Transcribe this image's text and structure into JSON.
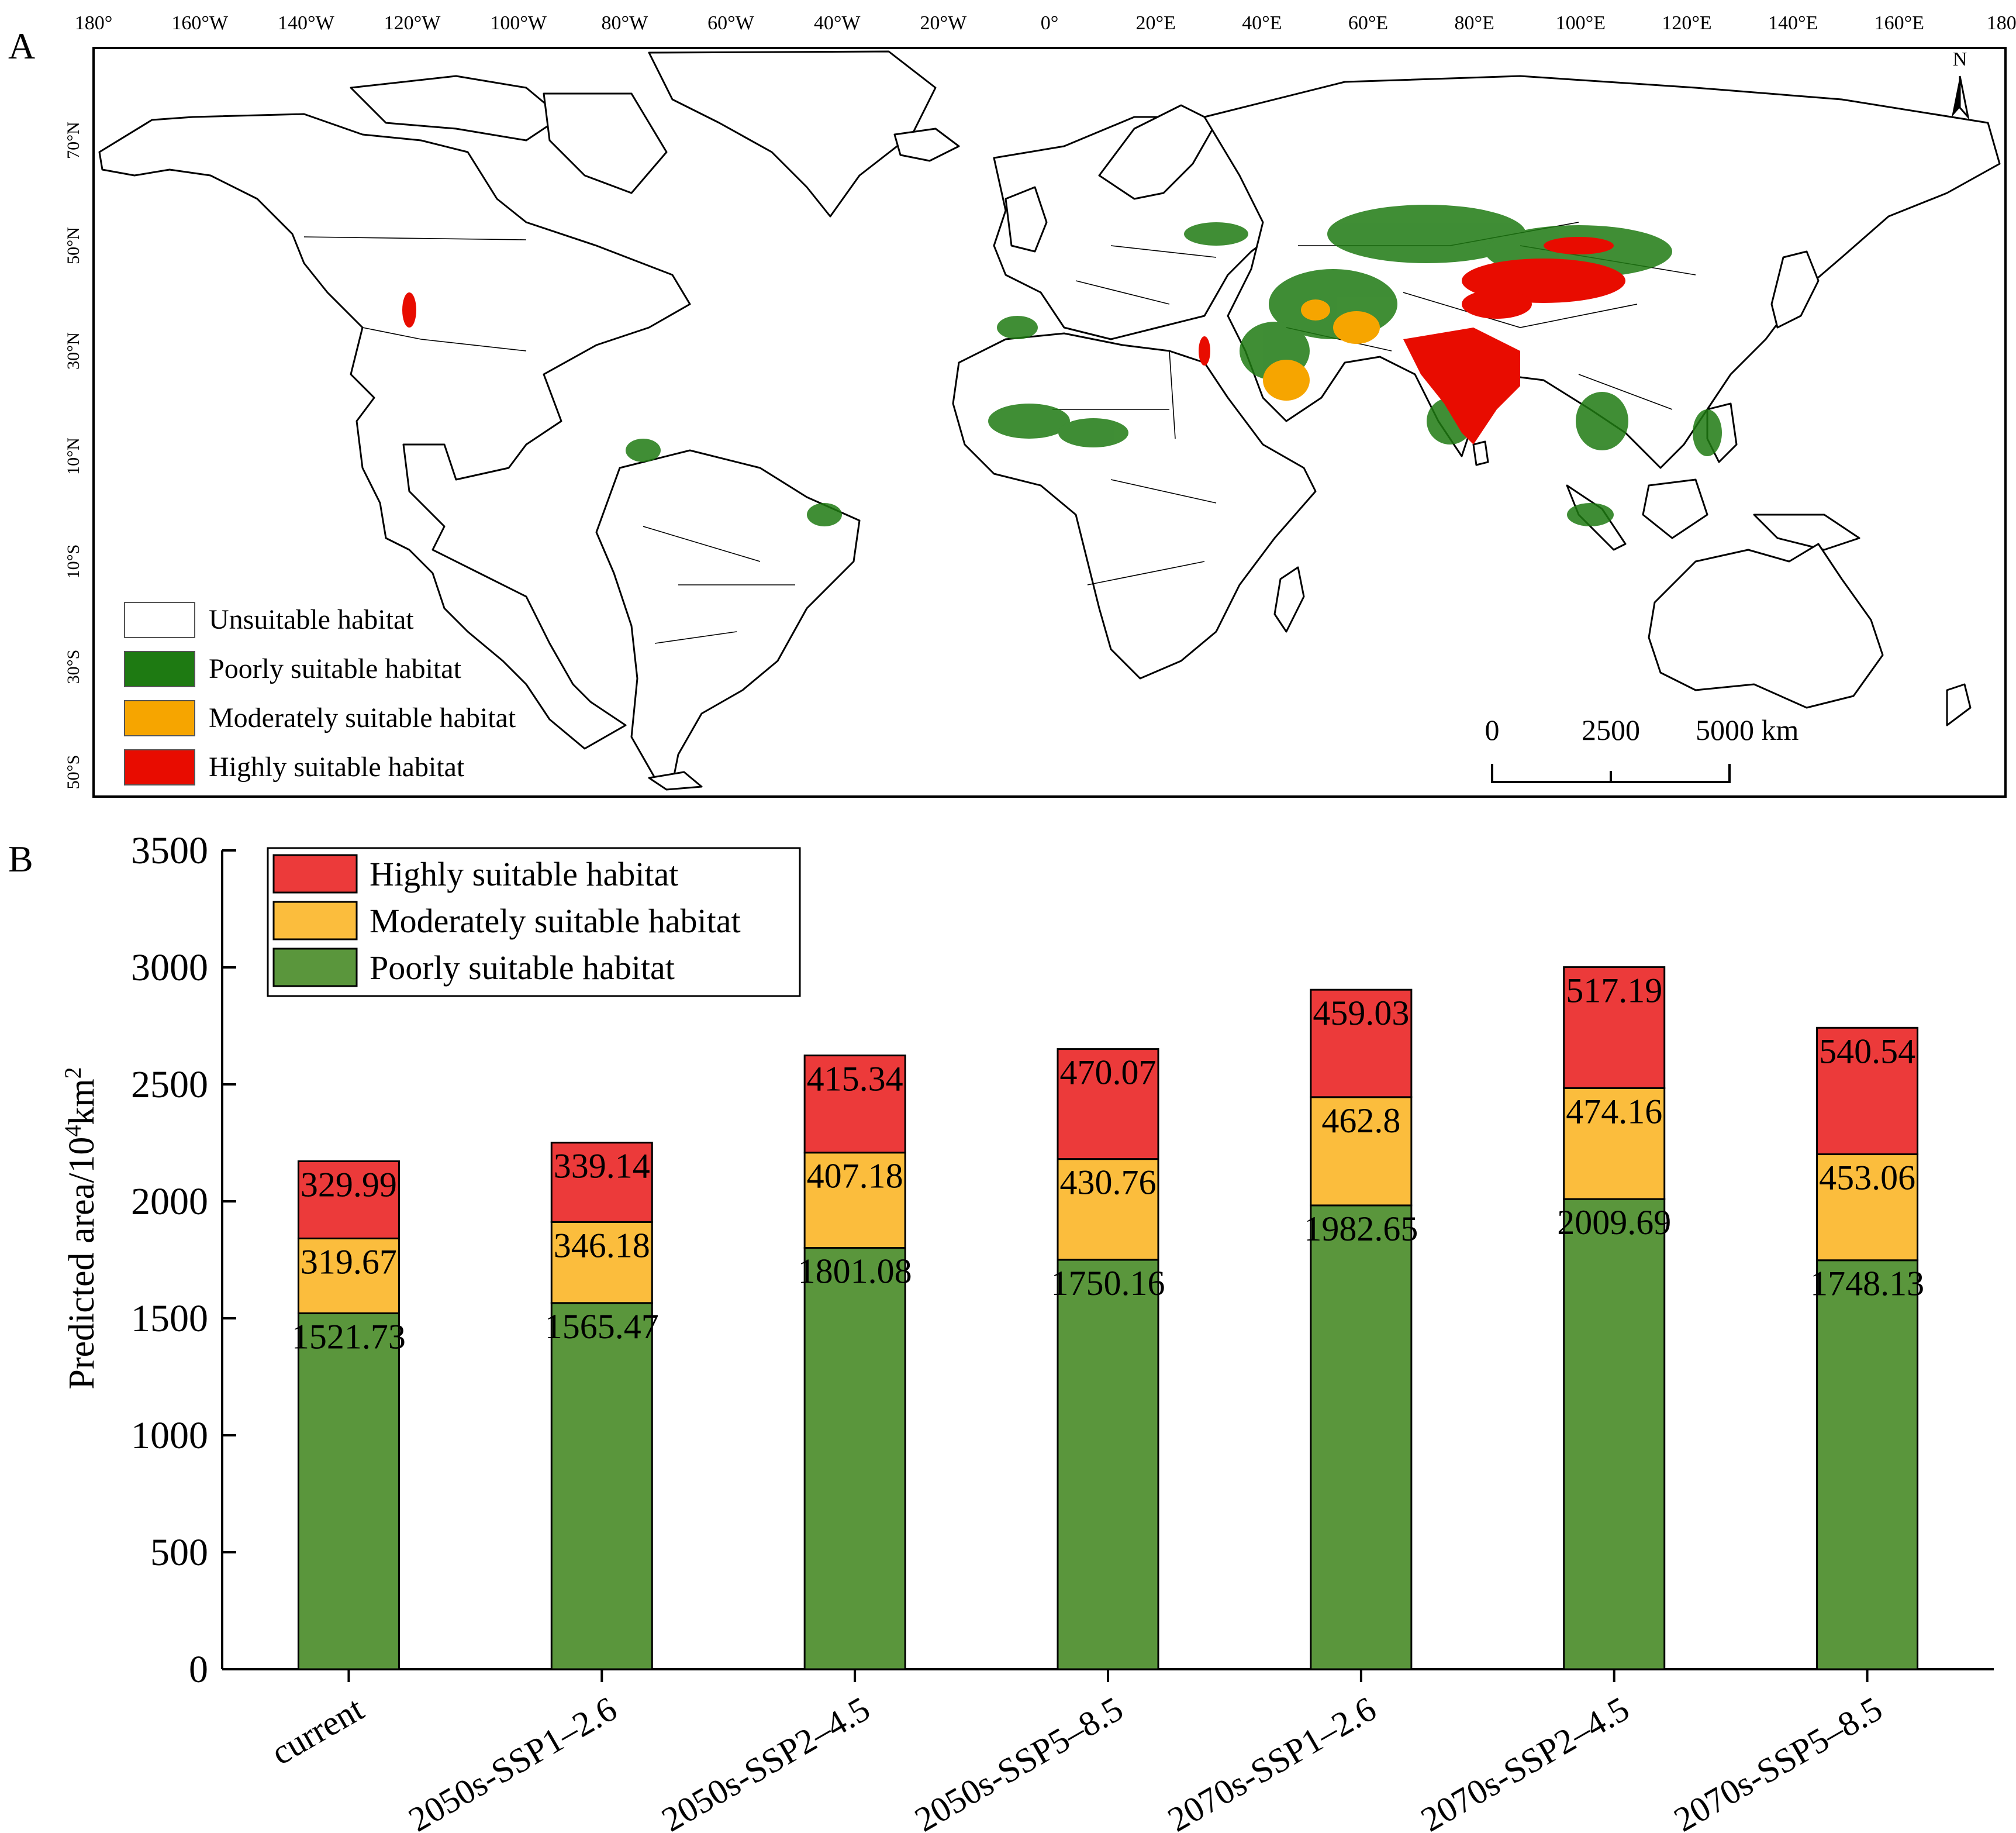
{
  "panel_a": {
    "letter": "A",
    "top_degree_labels": [
      "180°",
      "160°W",
      "140°W",
      "120°W",
      "100°W",
      "80°W",
      "60°W",
      "40°W",
      "20°W",
      "0°",
      "20°E",
      "40°E",
      "60°E",
      "80°E",
      "100°E",
      "120°E",
      "140°E",
      "160°E",
      "180°"
    ],
    "latitude_labels": [
      "70°N",
      "50°N",
      "30°N",
      "10°N",
      "10°S",
      "30°S",
      "50°S"
    ],
    "north_label": "N",
    "legend": [
      {
        "label": "Unsuitable habitat",
        "color": "#ffffff"
      },
      {
        "label": "Poorly suitable habitat",
        "color": "#1e7a12"
      },
      {
        "label": "Moderately suitable habitat",
        "color": "#f6a500"
      },
      {
        "label": "Highly suitable habitat",
        "color": "#e80c00"
      }
    ],
    "scale_bar": {
      "labels": [
        "0",
        "2500",
        "5000 km"
      ]
    },
    "icons": [
      "north-arrow-icon",
      "scale-bar-icon"
    ]
  },
  "panel_b": {
    "letter": "B"
  },
  "chart_data": {
    "type": "bar",
    "stacked": true,
    "categories": [
      "current",
      "2050s-SSP1–2.6",
      "2050s-SSP2–4.5",
      "2050s-SSP5–8.5",
      "2070s-SSP1–2.6",
      "2070s-SSP2–4.5",
      "2070s-SSP5–8.5"
    ],
    "series": [
      {
        "name": "Poorly suitable habitat",
        "color": "#5a963c",
        "values": [
          1521.73,
          1565.47,
          1801.08,
          1750.16,
          1982.65,
          2009.69,
          1748.13
        ],
        "labels": [
          "1521.73",
          "1565.47",
          "1801.08",
          "1750.16",
          "1982.65",
          "2009.69",
          "1748.13"
        ]
      },
      {
        "name": "Moderately suitable habitat",
        "color": "#fbbd3d",
        "values": [
          319.67,
          346.18,
          407.18,
          430.76,
          462.8,
          474.16,
          453.06
        ],
        "labels": [
          "319.67",
          "346.18",
          "407.18",
          "430.76",
          "462.8",
          "474.16",
          "453.06"
        ]
      },
      {
        "name": "Highly suitable habitat",
        "color": "#ec3a3a",
        "values": [
          329.99,
          339.14,
          415.34,
          470.07,
          459.03,
          517.19,
          540.54
        ],
        "labels": [
          "329.99",
          "339.14",
          "415.34",
          "470.07",
          "459.03",
          "517.19",
          "540.54"
        ]
      }
    ],
    "legend_order": [
      "Highly suitable habitat",
      "Moderately suitable habitat",
      "Poorly suitable habitat"
    ],
    "ylabel_main": "Predicted area/10",
    "ylabel_sup1": "4",
    "ylabel_mid": "km",
    "ylabel_sup2": "2",
    "ylim": [
      0,
      3500
    ],
    "yticks": [
      "0",
      "500",
      "1000",
      "1500",
      "2000",
      "2500",
      "3000",
      "3500"
    ],
    "legend_position": "top-left",
    "grid": false
  }
}
